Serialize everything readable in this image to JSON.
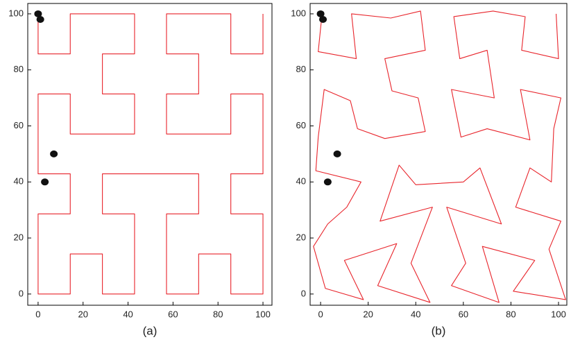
{
  "chart_data": [
    {
      "type": "line",
      "label": "(a)",
      "xlim": [
        -4.6,
        104
      ],
      "ylim": [
        -4,
        103.7
      ],
      "xticks": [
        0,
        20,
        40,
        60,
        80,
        100
      ],
      "yticks": [
        0,
        20,
        40,
        60,
        80,
        100
      ],
      "series": [
        {
          "color": "#e8232a",
          "x": [
            0,
            0,
            14.3,
            14.3,
            28.6,
            42.9,
            42.9,
            28.6,
            28.6,
            42.9,
            42.9,
            28.6,
            14.3,
            14.3,
            0,
            0,
            0,
            14.3,
            14.3,
            0,
            0,
            0,
            14.3,
            14.3,
            28.6,
            28.6,
            42.9,
            42.9,
            42.9,
            28.6,
            28.6,
            42.9,
            57.1,
            71.4,
            71.4,
            57.1,
            57.1,
            57.1,
            71.4,
            71.4,
            85.7,
            85.7,
            100,
            100,
            100,
            85.7,
            85.7,
            100,
            100,
            100,
            85.7,
            85.7,
            71.4,
            57.1,
            57.1,
            71.4,
            71.4,
            57.1,
            57.1,
            71.4,
            85.7,
            85.7,
            100,
            100
          ],
          "values": [
            100,
            85.7,
            85.7,
            100,
            100,
            100,
            85.7,
            85.7,
            71.4,
            71.4,
            57.1,
            57.1,
            57.1,
            71.4,
            71.4,
            57.1,
            42.9,
            42.9,
            28.6,
            28.6,
            14.3,
            0,
            0,
            14.3,
            14.3,
            0,
            0,
            14.3,
            28.6,
            28.6,
            42.9,
            42.9,
            42.9,
            42.9,
            28.6,
            28.6,
            14.3,
            0,
            0,
            14.3,
            14.3,
            0,
            0,
            14.3,
            28.6,
            28.6,
            42.9,
            42.9,
            57.1,
            71.4,
            71.4,
            57.1,
            57.1,
            57.1,
            71.4,
            71.4,
            85.7,
            85.7,
            100,
            100,
            100,
            85.7,
            85.7,
            100
          ]
        }
      ],
      "markers": {
        "color": "#111111",
        "x": [
          0,
          1,
          7,
          3
        ],
        "values": [
          100,
          98,
          50,
          40
        ]
      }
    },
    {
      "type": "line",
      "label": "(b)",
      "xlim": [
        -4.4,
        103.5
      ],
      "ylim": [
        -4,
        103.7
      ],
      "xticks": [
        0,
        20,
        40,
        60,
        80,
        100
      ],
      "yticks": [
        0,
        20,
        40,
        60,
        80,
        100
      ],
      "series": [
        {
          "color": "#e8232a",
          "x": [
            0.5,
            -1,
            15,
            13,
            29.5,
            42,
            44,
            27,
            30,
            41,
            44,
            27,
            15.5,
            12.5,
            1.5,
            -1,
            -2,
            17,
            11,
            3,
            -3,
            2,
            18,
            10,
            32,
            24,
            46,
            38,
            47,
            25,
            33,
            40,
            60,
            67,
            76,
            53,
            61,
            55,
            75,
            68,
            90,
            81,
            103,
            96,
            101,
            82,
            88,
            97,
            98,
            101,
            84,
            88,
            70,
            59,
            55,
            73,
            70,
            58.5,
            56,
            72.5,
            86,
            84.5,
            100,
            99
          ],
          "values": [
            99,
            86.5,
            84,
            100,
            98.5,
            101,
            87,
            84,
            72.5,
            70,
            58,
            55.5,
            59,
            69,
            73,
            56,
            44,
            40,
            31,
            25,
            17,
            2,
            -2,
            12,
            18,
            3,
            -3,
            11,
            31,
            26,
            46,
            39,
            40,
            45,
            25,
            31,
            11,
            3,
            -3,
            17,
            12,
            1,
            -2,
            16,
            26,
            31,
            45,
            40,
            59,
            70,
            73,
            55,
            59,
            56,
            73,
            70,
            87,
            84,
            99,
            101,
            99,
            87,
            84,
            100
          ]
        }
      ],
      "markers": {
        "color": "#111111",
        "x": [
          0,
          1,
          7,
          3
        ],
        "values": [
          100,
          98,
          50,
          40
        ]
      }
    }
  ]
}
